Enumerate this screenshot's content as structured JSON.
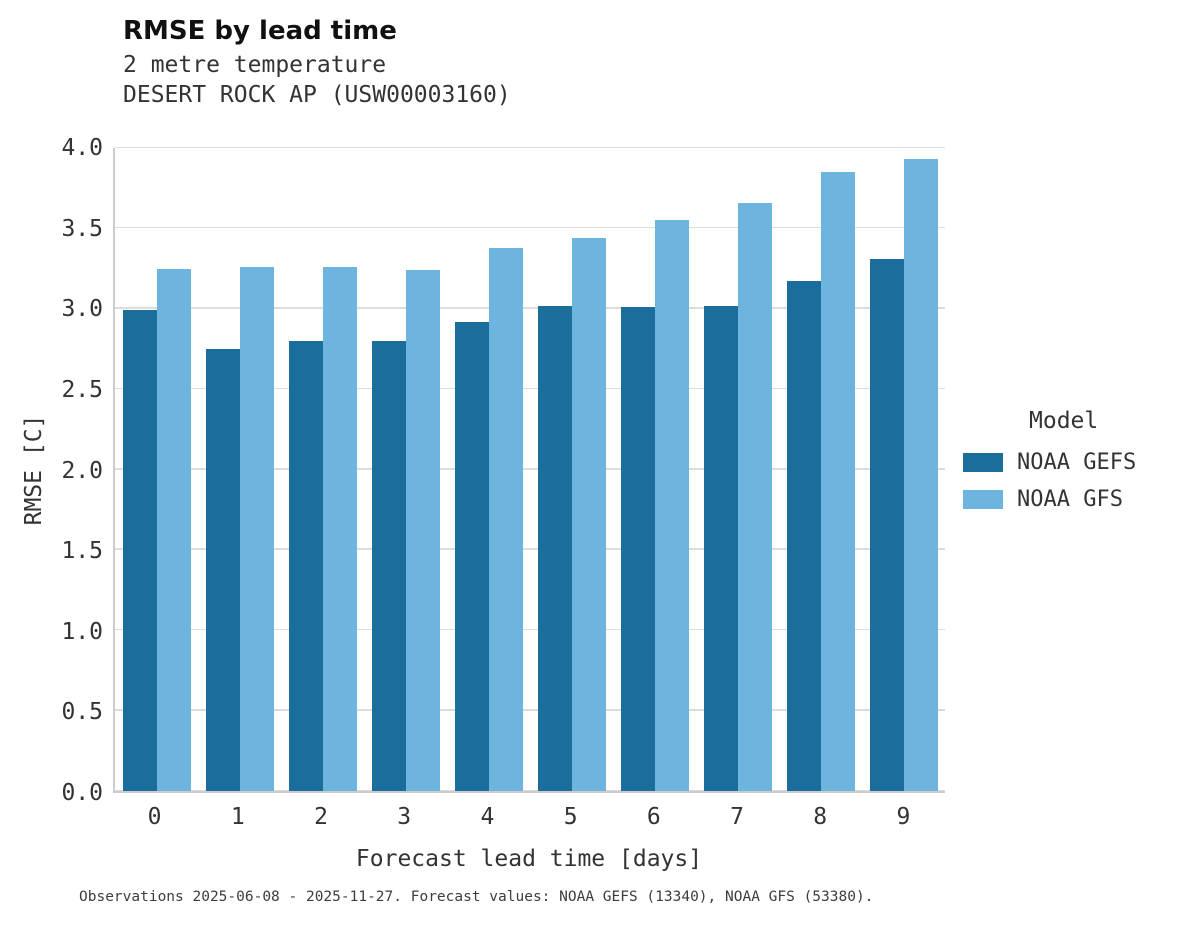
{
  "header": {
    "title": "RMSE by lead time",
    "subtitle": "2 metre temperature",
    "station": "DESERT ROCK AP (USW00003160)"
  },
  "footer": {
    "note": "Observations 2025-06-08 - 2025-11-27. Forecast values: NOAA GEFS (13340), NOAA GFS (53380)."
  },
  "legend": {
    "title": "Model"
  },
  "colors": {
    "gefs": "#1b6e9b",
    "gfs": "#6db4de",
    "grid": "#dcdcdc",
    "spine": "#cccccc"
  },
  "chart_data": {
    "type": "bar",
    "title": "RMSE by lead time",
    "subtitle": "2 metre temperature",
    "station": "DESERT ROCK AP (USW00003160)",
    "categories": [
      "0",
      "1",
      "2",
      "3",
      "4",
      "5",
      "6",
      "7",
      "8",
      "9"
    ],
    "series": [
      {
        "name": "NOAA GEFS",
        "color": "#1b6e9b",
        "values": [
          2.99,
          2.75,
          2.8,
          2.8,
          2.92,
          3.02,
          3.01,
          3.02,
          3.17,
          3.31
        ]
      },
      {
        "name": "NOAA GFS",
        "color": "#6db4de",
        "values": [
          3.25,
          3.26,
          3.26,
          3.24,
          3.38,
          3.44,
          3.55,
          3.66,
          3.85,
          3.93
        ]
      }
    ],
    "xlabel": "Forecast lead time [days]",
    "ylabel": "RMSE [C]",
    "ylim": [
      0.0,
      4.0
    ],
    "ytick_values": [
      0.0,
      0.5,
      1.0,
      1.5,
      2.0,
      2.5,
      3.0,
      3.5,
      4.0
    ],
    "ytick_labels": [
      "0.0",
      "0.5",
      "1.0",
      "1.5",
      "2.0",
      "2.5",
      "3.0",
      "3.5",
      "4.0"
    ],
    "grid": true,
    "legend_title": "Model",
    "legend_position": "right"
  }
}
